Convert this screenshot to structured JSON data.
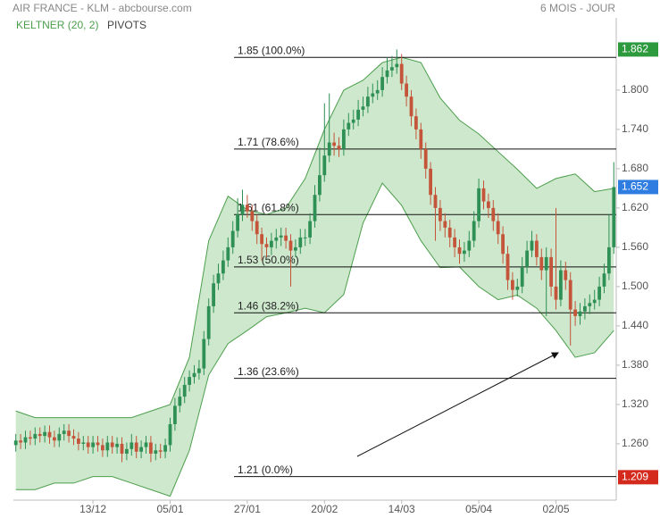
{
  "chart_data": {
    "type": "candlestick",
    "title": "AIR FRANCE - KLM - abcbourse.com",
    "subtitle": "6 MOIS - JOUR",
    "xlim": [
      -0.5,
      124.5
    ],
    "xticks": [
      {
        "value": 16,
        "label": "13/12"
      },
      {
        "value": 32,
        "label": "05/01"
      },
      {
        "value": 48,
        "label": "27/01"
      },
      {
        "value": 64,
        "label": "20/02"
      },
      {
        "value": 80,
        "label": "14/03"
      },
      {
        "value": 96,
        "label": "05/04"
      },
      {
        "value": 112,
        "label": "02/05"
      }
    ],
    "ylim": [
      1.174,
      1.883
    ],
    "yticks": [
      {
        "value": 1.26,
        "label": "1.260"
      },
      {
        "value": 1.32,
        "label": "1.320"
      },
      {
        "value": 1.38,
        "label": "1.380"
      },
      {
        "value": 1.44,
        "label": "1.440"
      },
      {
        "value": 1.5,
        "label": "1.500"
      },
      {
        "value": 1.56,
        "label": "1.560"
      },
      {
        "value": 1.62,
        "label": "1.620"
      },
      {
        "value": 1.68,
        "label": "1.680"
      },
      {
        "value": 1.74,
        "label": "1.740"
      },
      {
        "value": 1.8,
        "label": "1.800"
      }
    ],
    "candles": {
      "up_color": "#2e9055",
      "down_color": "#c4553a",
      "open": [
        1.258,
        1.265,
        1.262,
        1.27,
        1.268,
        1.275,
        1.272,
        1.278,
        1.27,
        1.265,
        1.275,
        1.28,
        1.272,
        1.268,
        1.26,
        1.262,
        1.255,
        1.262,
        1.258,
        1.25,
        1.262,
        1.255,
        1.26,
        1.245,
        1.252,
        1.262,
        1.248,
        1.255,
        1.262,
        1.245,
        1.25,
        1.248,
        1.258,
        1.29,
        1.318,
        1.332,
        1.35,
        1.362,
        1.368,
        1.375,
        1.42,
        1.47,
        1.505,
        1.52,
        1.54,
        1.56,
        1.585,
        1.61,
        1.625,
        1.615,
        1.6,
        1.58,
        1.565,
        1.56,
        1.57,
        1.575,
        1.578,
        1.57,
        1.555,
        1.56,
        1.575,
        1.575,
        1.6,
        1.64,
        1.67,
        1.7,
        1.72,
        1.715,
        1.71,
        1.74,
        1.75,
        1.755,
        1.77,
        1.775,
        1.79,
        1.795,
        1.8,
        1.82,
        1.83,
        1.835,
        1.84,
        1.81,
        1.79,
        1.76,
        1.74,
        1.71,
        1.68,
        1.64,
        1.62,
        1.6,
        1.59,
        1.575,
        1.56,
        1.55,
        1.555,
        1.57,
        1.6,
        1.65,
        1.63,
        1.62,
        1.6,
        1.58,
        1.55,
        1.51,
        1.495,
        1.5,
        1.53,
        1.555,
        1.57,
        1.545,
        1.525,
        1.545,
        1.5,
        1.48,
        1.525,
        1.51,
        1.465,
        1.455,
        1.462,
        1.47,
        1.475,
        1.48,
        1.5,
        1.52,
        1.56
      ],
      "high": [
        1.275,
        1.275,
        1.28,
        1.28,
        1.285,
        1.285,
        1.288,
        1.288,
        1.28,
        1.285,
        1.29,
        1.29,
        1.282,
        1.278,
        1.272,
        1.272,
        1.272,
        1.272,
        1.268,
        1.272,
        1.272,
        1.27,
        1.27,
        1.262,
        1.275,
        1.272,
        1.265,
        1.272,
        1.272,
        1.26,
        1.26,
        1.268,
        1.3,
        1.33,
        1.345,
        1.362,
        1.372,
        1.38,
        1.388,
        1.432,
        1.482,
        1.518,
        1.535,
        1.555,
        1.575,
        1.6,
        1.635,
        1.648,
        1.64,
        1.625,
        1.61,
        1.59,
        1.575,
        1.582,
        1.588,
        1.59,
        1.59,
        1.58,
        1.572,
        1.588,
        1.588,
        1.612,
        1.655,
        1.712,
        1.78,
        1.795,
        1.735,
        1.728,
        1.755,
        1.765,
        1.77,
        1.785,
        1.79,
        1.805,
        1.81,
        1.815,
        1.835,
        1.85,
        1.852,
        1.862,
        1.855,
        1.822,
        1.8,
        1.772,
        1.75,
        1.72,
        1.69,
        1.652,
        1.632,
        1.612,
        1.602,
        1.588,
        1.572,
        1.568,
        1.585,
        1.615,
        1.665,
        1.662,
        1.642,
        1.632,
        1.612,
        1.592,
        1.562,
        1.522,
        1.512,
        1.545,
        1.57,
        1.585,
        1.58,
        1.558,
        1.56,
        1.558,
        1.62,
        1.54,
        1.538,
        1.522,
        1.478,
        1.475,
        1.482,
        1.488,
        1.495,
        1.515,
        1.535,
        1.61,
        1.69
      ],
      "low": [
        1.248,
        1.252,
        1.252,
        1.258,
        1.258,
        1.262,
        1.262,
        1.26,
        1.255,
        1.255,
        1.265,
        1.262,
        1.258,
        1.25,
        1.25,
        1.245,
        1.245,
        1.248,
        1.24,
        1.24,
        1.245,
        1.245,
        1.232,
        1.235,
        1.242,
        1.238,
        1.238,
        1.245,
        1.232,
        1.235,
        1.238,
        1.238,
        1.248,
        1.28,
        1.308,
        1.322,
        1.34,
        1.352,
        1.358,
        1.365,
        1.41,
        1.46,
        1.495,
        1.51,
        1.53,
        1.55,
        1.575,
        1.6,
        1.605,
        1.585,
        1.565,
        1.54,
        1.545,
        1.548,
        1.558,
        1.562,
        1.558,
        1.5,
        1.545,
        1.55,
        1.562,
        1.565,
        1.59,
        1.63,
        1.66,
        1.69,
        1.7,
        1.698,
        1.7,
        1.73,
        1.74,
        1.745,
        1.76,
        1.765,
        1.78,
        1.785,
        1.79,
        1.81,
        1.82,
        1.825,
        1.8,
        1.775,
        1.745,
        1.725,
        1.695,
        1.665,
        1.625,
        1.57,
        1.585,
        1.575,
        1.56,
        1.545,
        1.535,
        1.538,
        1.545,
        1.56,
        1.59,
        1.618,
        1.605,
        1.585,
        1.565,
        1.535,
        1.495,
        1.48,
        1.485,
        1.49,
        1.52,
        1.545,
        1.532,
        1.51,
        1.455,
        1.485,
        1.465,
        1.47,
        1.495,
        1.41,
        1.44,
        1.442,
        1.45,
        1.458,
        1.465,
        1.47,
        1.49,
        1.51,
        1.55
      ],
      "close": [
        1.265,
        1.262,
        1.27,
        1.268,
        1.275,
        1.272,
        1.278,
        1.27,
        1.265,
        1.275,
        1.28,
        1.272,
        1.268,
        1.26,
        1.262,
        1.255,
        1.262,
        1.258,
        1.25,
        1.262,
        1.255,
        1.26,
        1.245,
        1.252,
        1.262,
        1.248,
        1.255,
        1.262,
        1.245,
        1.25,
        1.248,
        1.258,
        1.29,
        1.318,
        1.332,
        1.35,
        1.362,
        1.368,
        1.375,
        1.42,
        1.47,
        1.505,
        1.52,
        1.54,
        1.56,
        1.585,
        1.61,
        1.625,
        1.615,
        1.6,
        1.58,
        1.565,
        1.56,
        1.57,
        1.575,
        1.578,
        1.57,
        1.555,
        1.56,
        1.575,
        1.575,
        1.6,
        1.64,
        1.67,
        1.7,
        1.72,
        1.715,
        1.71,
        1.74,
        1.75,
        1.755,
        1.77,
        1.775,
        1.79,
        1.795,
        1.8,
        1.82,
        1.83,
        1.835,
        1.84,
        1.81,
        1.79,
        1.76,
        1.74,
        1.71,
        1.68,
        1.64,
        1.62,
        1.6,
        1.59,
        1.575,
        1.56,
        1.55,
        1.555,
        1.57,
        1.6,
        1.65,
        1.63,
        1.62,
        1.6,
        1.58,
        1.55,
        1.51,
        1.495,
        1.5,
        1.53,
        1.555,
        1.57,
        1.545,
        1.525,
        1.545,
        1.5,
        1.48,
        1.525,
        1.51,
        1.465,
        1.455,
        1.462,
        1.47,
        1.475,
        1.48,
        1.5,
        1.52,
        1.56,
        1.652
      ]
    },
    "band": {
      "name": "KELTNER (20, 2)",
      "color": "#4c9e4c",
      "fill": "#cde8cc",
      "x": [
        0,
        4,
        8,
        12,
        16,
        20,
        24,
        28,
        32,
        36,
        40,
        44,
        48,
        52,
        56,
        60,
        64,
        68,
        72,
        76,
        80,
        84,
        88,
        92,
        96,
        100,
        104,
        108,
        112,
        116,
        120,
        124
      ],
      "upper": [
        1.31,
        1.3,
        1.3,
        1.3,
        1.3,
        1.3,
        1.3,
        1.31,
        1.32,
        1.392,
        1.57,
        1.638,
        1.617,
        1.61,
        1.62,
        1.665,
        1.74,
        1.8,
        1.815,
        1.842,
        1.85,
        1.842,
        1.788,
        1.754,
        1.733,
        1.706,
        1.679,
        1.65,
        1.665,
        1.672,
        1.645,
        1.65
      ],
      "lower": [
        1.19,
        1.19,
        1.2,
        1.2,
        1.21,
        1.21,
        1.2,
        1.19,
        1.18,
        1.25,
        1.365,
        1.413,
        1.433,
        1.454,
        1.46,
        1.467,
        1.46,
        1.488,
        1.597,
        1.658,
        1.624,
        1.57,
        1.529,
        1.53,
        1.5,
        1.48,
        1.487,
        1.467,
        1.433,
        1.392,
        1.399,
        1.433
      ]
    },
    "pivots": {
      "name": "PIVOTS",
      "levels": [
        {
          "value": 1.85,
          "label": "1.85 (100.0%)"
        },
        {
          "value": 1.71,
          "label": "1.71 (78.6%)"
        },
        {
          "value": 1.61,
          "label": "1.61 (61.8%)"
        },
        {
          "value": 1.53,
          "label": "1.53 (50.0%)"
        },
        {
          "value": 1.46,
          "label": "1.46 (38.2%)"
        },
        {
          "value": 1.36,
          "label": "1.36 (23.6%)"
        },
        {
          "value": 1.21,
          "label": "1.21 (0.0%)"
        }
      ]
    },
    "price_labels": [
      {
        "value": 1.862,
        "color": "#2e9a3e"
      },
      {
        "value": 1.652,
        "color": "#2f7de1"
      },
      {
        "value": 1.209,
        "color": "#d42a1e"
      }
    ]
  }
}
